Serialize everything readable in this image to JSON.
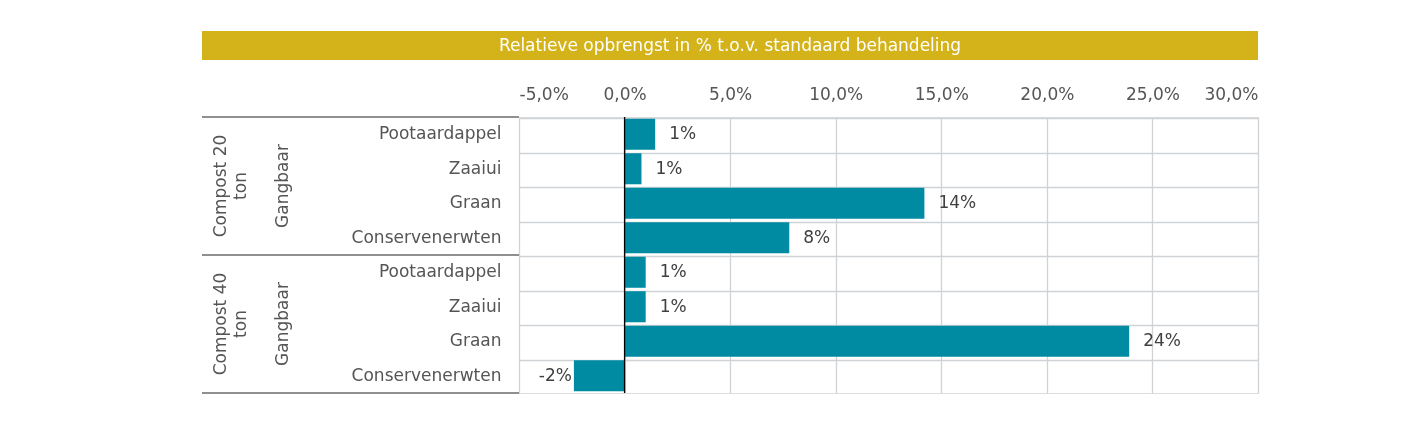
{
  "chart_data": {
    "type": "bar",
    "orientation": "horizontal",
    "title": "Relatieve opbrengst in % t.o.v. standaard behandeling",
    "categories": [
      "Pootaardappel",
      "Zaaiui",
      "Graan",
      "Conservenerwten",
      "Pootaardappel",
      "Zaaiui",
      "Graan",
      "Conservenerwten"
    ],
    "values": [
      1.45,
      0.8,
      14.2,
      7.8,
      1.0,
      1.0,
      23.9,
      -2.4
    ],
    "value_labels": [
      "1%",
      "1%",
      "14%",
      "8%",
      "1%",
      "1%",
      "24%",
      "-2%"
    ],
    "color": "#008ba3",
    "xlim": [
      -5,
      30
    ],
    "xticks": [
      {
        "value": -5,
        "label": "-5,0%"
      },
      {
        "value": 0,
        "label": "0,0%"
      },
      {
        "value": 5,
        "label": "5,0%"
      },
      {
        "value": 10,
        "label": "10,0%"
      },
      {
        "value": 15,
        "label": "15,0%"
      },
      {
        "value": 20,
        "label": "20,0%"
      },
      {
        "value": 25,
        "label": "25,0%"
      },
      {
        "value": 30,
        "label": "30,0%"
      }
    ],
    "annotations": [
      "Compost 20 ton",
      "Gangbaar",
      "Compost 40 ton",
      "Gangbaar"
    ],
    "grid": true
  }
}
